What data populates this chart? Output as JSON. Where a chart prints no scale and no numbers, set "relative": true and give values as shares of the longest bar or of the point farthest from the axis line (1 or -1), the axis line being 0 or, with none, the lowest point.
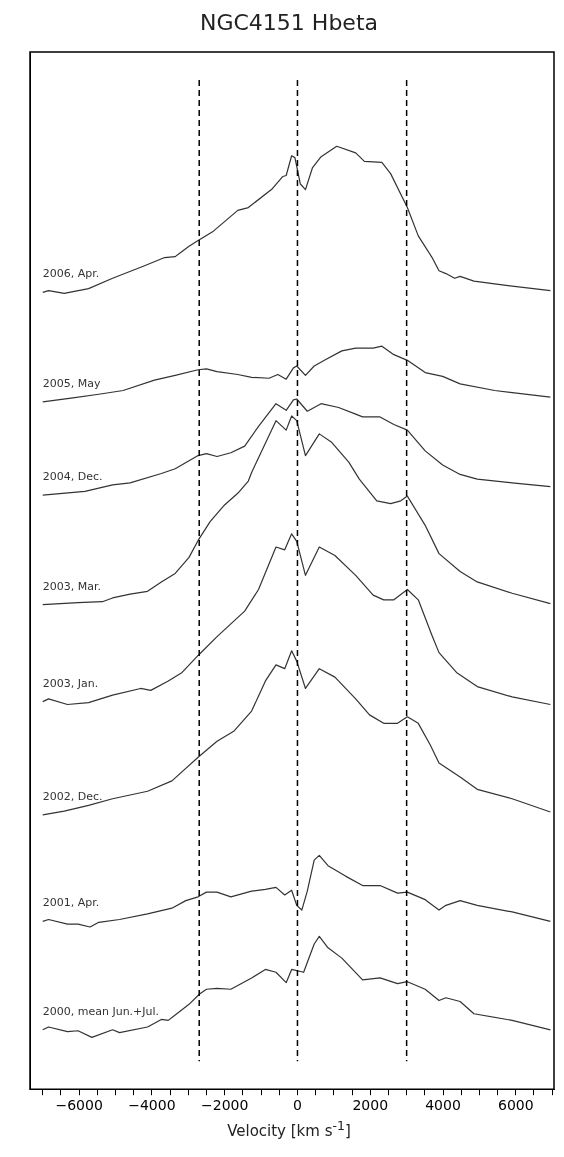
{
  "chart_data": {
    "type": "line",
    "title": "NGC4151 Hbeta",
    "xlabel": "Velocity [km s$^{-1}$]",
    "relative": true,
    "legend": false,
    "grid": false,
    "marker": "none",
    "line_style": "solid",
    "xlim": [
      -7350,
      7050
    ],
    "xticks": [
      {
        "value": -7000,
        "label": null
      },
      {
        "value": -6500,
        "label": null
      },
      {
        "value": -6000,
        "label": "−6000"
      },
      {
        "value": -5500,
        "label": null
      },
      {
        "value": -5000,
        "label": null
      },
      {
        "value": -4500,
        "label": null
      },
      {
        "value": -4000,
        "label": "−4000"
      },
      {
        "value": -3500,
        "label": null
      },
      {
        "value": -3000,
        "label": null
      },
      {
        "value": -2500,
        "label": null
      },
      {
        "value": -2000,
        "label": "−2000"
      },
      {
        "value": -1500,
        "label": null
      },
      {
        "value": -1000,
        "label": null
      },
      {
        "value": -500,
        "label": null
      },
      0,
      {
        "value": 500,
        "label": null
      },
      {
        "value": 1000,
        "label": null
      },
      {
        "value": 1500,
        "label": null
      },
      2000,
      {
        "value": 2500,
        "label": null
      },
      {
        "value": 3000,
        "label": null
      },
      {
        "value": 3500,
        "label": null
      },
      4000,
      {
        "value": 4500,
        "label": null
      },
      {
        "value": 5000,
        "label": null
      },
      {
        "value": 5500,
        "label": null
      },
      6000,
      {
        "value": 6500,
        "label": null
      },
      {
        "value": 7000,
        "label": null
      }
    ],
    "ref_lines": [
      {
        "axis": "x",
        "value": -2700,
        "line_style": "dashed",
        "color": "#000000"
      },
      {
        "axis": "x",
        "value": 0,
        "line_style": "dashed",
        "color": "#000000"
      },
      {
        "axis": "x",
        "value": 3000,
        "line_style": "dashed",
        "color": "#000000"
      }
    ],
    "series": [
      {
        "name": "2006, Apr.",
        "color": "#333333",
        "x": [
          -7000,
          -6840,
          -6410,
          -5740,
          -5080,
          -4220,
          -3650,
          -3360,
          -2980,
          -2730,
          -2310,
          -1640,
          -1350,
          -690,
          -400,
          -310,
          -160,
          -70,
          80,
          220,
          410,
          650,
          1080,
          1600,
          1840,
          2320,
          2560,
          3020,
          3320,
          3700,
          3890,
          4080,
          4320,
          4470,
          4850,
          5420,
          6950
        ],
        "values": [
          0.845,
          0.847,
          0.844,
          0.849,
          0.86,
          0.873,
          0.882,
          0.883,
          0.894,
          0.9,
          0.91,
          0.932,
          0.935,
          0.955,
          0.968,
          0.969,
          0.99,
          0.988,
          0.96,
          0.954,
          0.977,
          0.989,
          1.0,
          0.993,
          0.984,
          0.983,
          0.971,
          0.935,
          0.905,
          0.882,
          0.868,
          0.865,
          0.86,
          0.862,
          0.857,
          0.854,
          0.847
        ]
      },
      {
        "name": "2005, May",
        "color": "#333333",
        "x": [
          -7000,
          -6220,
          -5460,
          -4790,
          -3930,
          -3360,
          -2730,
          -2500,
          -2210,
          -1640,
          -1260,
          -780,
          -540,
          -310,
          -110,
          -20,
          220,
          460,
          740,
          1220,
          1600,
          2080,
          2320,
          2650,
          3020,
          3510,
          3990,
          4470,
          5420,
          6950
        ],
        "values": [
          0.729,
          0.733,
          0.737,
          0.741,
          0.752,
          0.757,
          0.763,
          0.764,
          0.761,
          0.758,
          0.755,
          0.754,
          0.758,
          0.753,
          0.765,
          0.767,
          0.757,
          0.767,
          0.773,
          0.783,
          0.786,
          0.786,
          0.788,
          0.779,
          0.773,
          0.76,
          0.756,
          0.748,
          0.741,
          0.734
        ]
      },
      {
        "name": "2004, Dec.",
        "color": "#333333",
        "x": [
          -7000,
          -5840,
          -5080,
          -4600,
          -3740,
          -3360,
          -2730,
          -2500,
          -2210,
          -1830,
          -1450,
          -1070,
          -590,
          -310,
          -110,
          -20,
          270,
          650,
          1130,
          1600,
          1790,
          2270,
          2650,
          3020,
          3510,
          3990,
          4470,
          4940,
          5900,
          6950
        ],
        "values": [
          0.63,
          0.634,
          0.641,
          0.643,
          0.653,
          0.658,
          0.672,
          0.674,
          0.671,
          0.675,
          0.682,
          0.703,
          0.727,
          0.72,
          0.731,
          0.732,
          0.719,
          0.727,
          0.723,
          0.716,
          0.713,
          0.713,
          0.705,
          0.699,
          0.677,
          0.662,
          0.652,
          0.647,
          0.643,
          0.639
        ]
      },
      {
        "name": "2003, Mar.",
        "color": "#333333",
        "x": [
          -7000,
          -6030,
          -5360,
          -5080,
          -4600,
          -4120,
          -3740,
          -3360,
          -2980,
          -2730,
          -2400,
          -2020,
          -1640,
          -1350,
          -1260,
          -590,
          -310,
          -160,
          -20,
          220,
          600,
          940,
          1410,
          1700,
          2180,
          2560,
          2840,
          3020,
          3510,
          3890,
          4470,
          4940,
          5900,
          6950
        ],
        "values": [
          0.514,
          0.516,
          0.517,
          0.521,
          0.525,
          0.528,
          0.538,
          0.547,
          0.564,
          0.582,
          0.602,
          0.619,
          0.632,
          0.645,
          0.654,
          0.709,
          0.699,
          0.714,
          0.709,
          0.672,
          0.695,
          0.686,
          0.665,
          0.647,
          0.624,
          0.621,
          0.624,
          0.629,
          0.598,
          0.568,
          0.549,
          0.538,
          0.526,
          0.515
        ]
      },
      {
        "name": "2003, Jan.",
        "color": "#333333",
        "x": [
          -7000,
          -6840,
          -6320,
          -5740,
          -5080,
          -4310,
          -4030,
          -3550,
          -3170,
          -2730,
          -2210,
          -1450,
          -1070,
          -590,
          -350,
          -160,
          -20,
          220,
          600,
          1030,
          1600,
          2080,
          2370,
          2650,
          3020,
          3320,
          3700,
          3890,
          4370,
          4940,
          5900,
          6950
        ],
        "values": [
          0.411,
          0.414,
          0.408,
          0.41,
          0.418,
          0.425,
          0.423,
          0.433,
          0.442,
          0.46,
          0.48,
          0.507,
          0.53,
          0.575,
          0.572,
          0.589,
          0.581,
          0.545,
          0.575,
          0.566,
          0.545,
          0.524,
          0.519,
          0.519,
          0.53,
          0.519,
          0.481,
          0.463,
          0.442,
          0.427,
          0.416,
          0.408
        ]
      },
      {
        "name": "2002, Dec.",
        "color": "#333333",
        "x": [
          -7000,
          -6410,
          -5740,
          -5080,
          -4120,
          -3450,
          -2730,
          -2210,
          -1740,
          -1260,
          -880,
          -590,
          -350,
          -160,
          -20,
          220,
          600,
          1030,
          1600,
          1980,
          2370,
          2750,
          3020,
          3320,
          3650,
          3890,
          4470,
          4940,
          5900,
          6950
        ],
        "values": [
          0.291,
          0.295,
          0.301,
          0.308,
          0.316,
          0.327,
          0.352,
          0.369,
          0.38,
          0.401,
          0.433,
          0.45,
          0.446,
          0.465,
          0.454,
          0.425,
          0.446,
          0.437,
          0.414,
          0.397,
          0.388,
          0.388,
          0.395,
          0.388,
          0.365,
          0.346,
          0.331,
          0.318,
          0.308,
          0.294
        ]
      },
      {
        "name": "2001, Apr.",
        "color": "#333333",
        "x": [
          -7000,
          -6840,
          -6320,
          -6030,
          -5700,
          -5460,
          -4890,
          -4120,
          -3450,
          -3070,
          -2730,
          -2500,
          -2210,
          -1830,
          -1260,
          -880,
          -590,
          -350,
          -160,
          -20,
          120,
          270,
          460,
          600,
          840,
          1320,
          1790,
          2270,
          2750,
          3020,
          3510,
          3890,
          4080,
          4470,
          4940,
          5900,
          6950
        ],
        "values": [
          0.178,
          0.18,
          0.175,
          0.175,
          0.172,
          0.177,
          0.18,
          0.186,
          0.192,
          0.2,
          0.204,
          0.209,
          0.209,
          0.204,
          0.21,
          0.212,
          0.214,
          0.206,
          0.211,
          0.195,
          0.19,
          0.21,
          0.243,
          0.248,
          0.237,
          0.226,
          0.216,
          0.216,
          0.208,
          0.209,
          0.201,
          0.19,
          0.195,
          0.2,
          0.195,
          0.188,
          0.178
        ]
      },
      {
        "name": "2000, mean Jun.+Jul.",
        "color": "#333333",
        "x": [
          -7000,
          -6840,
          -6320,
          -6030,
          -5650,
          -5080,
          -4890,
          -4120,
          -3740,
          -3550,
          -2980,
          -2690,
          -2500,
          -2210,
          -1830,
          -1260,
          -880,
          -590,
          -310,
          -160,
          170,
          460,
          600,
          840,
          1220,
          1790,
          2270,
          2750,
          3020,
          3510,
          3890,
          4080,
          4470,
          4850,
          5900,
          6950
        ],
        "values": [
          0.063,
          0.066,
          0.061,
          0.062,
          0.055,
          0.063,
          0.06,
          0.066,
          0.074,
          0.073,
          0.09,
          0.101,
          0.106,
          0.107,
          0.106,
          0.118,
          0.127,
          0.124,
          0.113,
          0.127,
          0.124,
          0.154,
          0.162,
          0.15,
          0.139,
          0.116,
          0.118,
          0.112,
          0.114,
          0.106,
          0.094,
          0.097,
          0.093,
          0.08,
          0.073,
          0.063
        ]
      }
    ]
  }
}
